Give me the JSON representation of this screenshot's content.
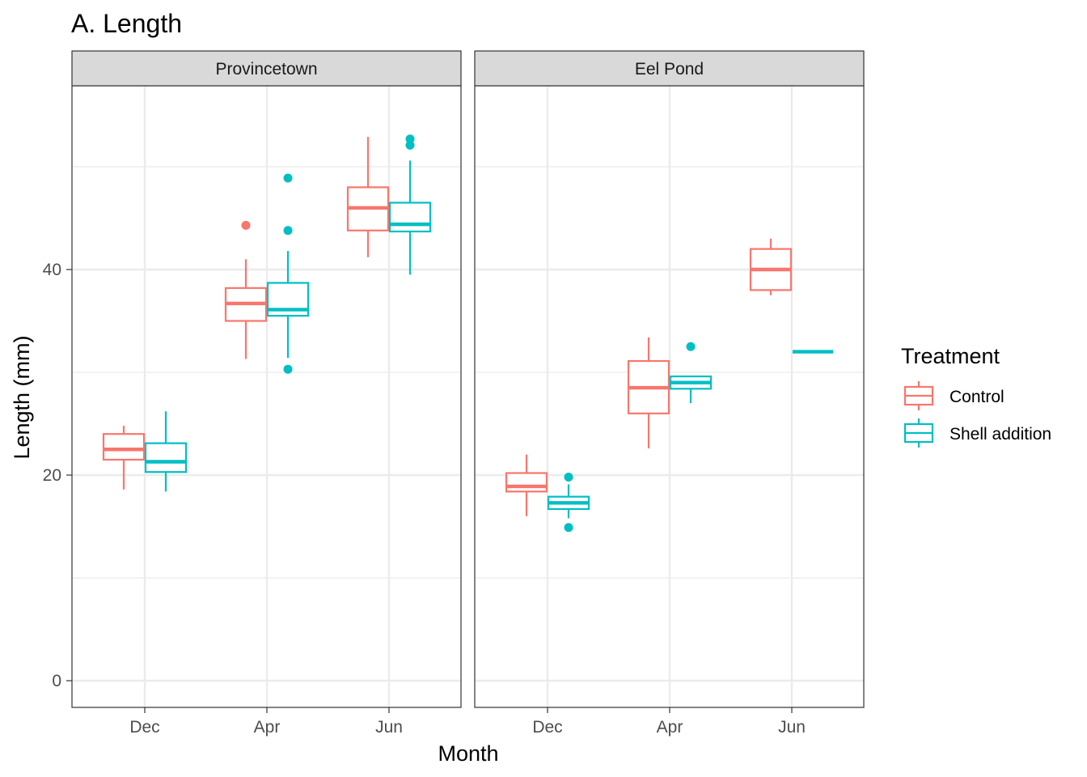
{
  "chart_data": {
    "type": "boxplot",
    "title": "A. Length",
    "xlabel": "Month",
    "ylabel": "Length (mm)",
    "ylim": [
      -5,
      58
    ],
    "y_ticks": [
      0,
      20,
      40
    ],
    "grid": true,
    "categories": [
      "Dec",
      "Apr",
      "Jun"
    ],
    "legend": {
      "title": "Treatment",
      "position": "right",
      "entries": [
        {
          "name": "Control",
          "color": "#F8766D"
        },
        {
          "name": "Shell addition",
          "color": "#00BFC4"
        }
      ]
    },
    "panels": [
      {
        "name": "Provincetown",
        "boxes": [
          {
            "month": "Dec",
            "treatment": "Control",
            "min": 18.6,
            "q1": 21.5,
            "median": 22.5,
            "q3": 24.0,
            "max": 24.8,
            "outliers": []
          },
          {
            "month": "Dec",
            "treatment": "Shell addition",
            "min": 18.4,
            "q1": 20.3,
            "median": 21.3,
            "q3": 23.1,
            "max": 26.2,
            "outliers": []
          },
          {
            "month": "Apr",
            "treatment": "Control",
            "min": 31.3,
            "q1": 35.0,
            "median": 36.7,
            "q3": 38.2,
            "max": 41.0,
            "outliers": [
              44.3
            ]
          },
          {
            "month": "Apr",
            "treatment": "Shell addition",
            "min": 31.4,
            "q1": 35.5,
            "median": 36.1,
            "q3": 38.7,
            "max": 41.8,
            "outliers": [
              48.9,
              43.8,
              30.3
            ]
          },
          {
            "month": "Jun",
            "treatment": "Control",
            "min": 41.2,
            "q1": 43.8,
            "median": 46.0,
            "q3": 48.0,
            "max": 52.9,
            "outliers": []
          },
          {
            "month": "Jun",
            "treatment": "Shell addition",
            "min": 39.5,
            "q1": 43.7,
            "median": 44.4,
            "q3": 46.5,
            "max": 50.6,
            "outliers": [
              52.7,
              52.1
            ]
          }
        ]
      },
      {
        "name": "Eel Pond",
        "boxes": [
          {
            "month": "Dec",
            "treatment": "Control",
            "min": 16.0,
            "q1": 18.4,
            "median": 18.9,
            "q3": 20.2,
            "max": 22.0,
            "outliers": []
          },
          {
            "month": "Dec",
            "treatment": "Shell addition",
            "min": 15.8,
            "q1": 16.7,
            "median": 17.3,
            "q3": 17.9,
            "max": 19.1,
            "outliers": [
              19.8,
              14.9
            ]
          },
          {
            "month": "Apr",
            "treatment": "Control",
            "min": 22.6,
            "q1": 26.0,
            "median": 28.5,
            "q3": 31.1,
            "max": 33.4,
            "outliers": []
          },
          {
            "month": "Apr",
            "treatment": "Shell addition",
            "min": 27.0,
            "q1": 28.4,
            "median": 29.0,
            "q3": 29.6,
            "max": 29.6,
            "outliers": [
              32.5
            ]
          },
          {
            "month": "Jun",
            "treatment": "Control",
            "min": 37.5,
            "q1": 38.0,
            "median": 40.0,
            "q3": 42.0,
            "max": 43.0,
            "outliers": []
          },
          {
            "month": "Jun",
            "treatment": "Shell addition",
            "min": 32.0,
            "q1": 32.0,
            "median": 32.0,
            "q3": 32.0,
            "max": 32.0,
            "outliers": []
          }
        ]
      }
    ]
  }
}
